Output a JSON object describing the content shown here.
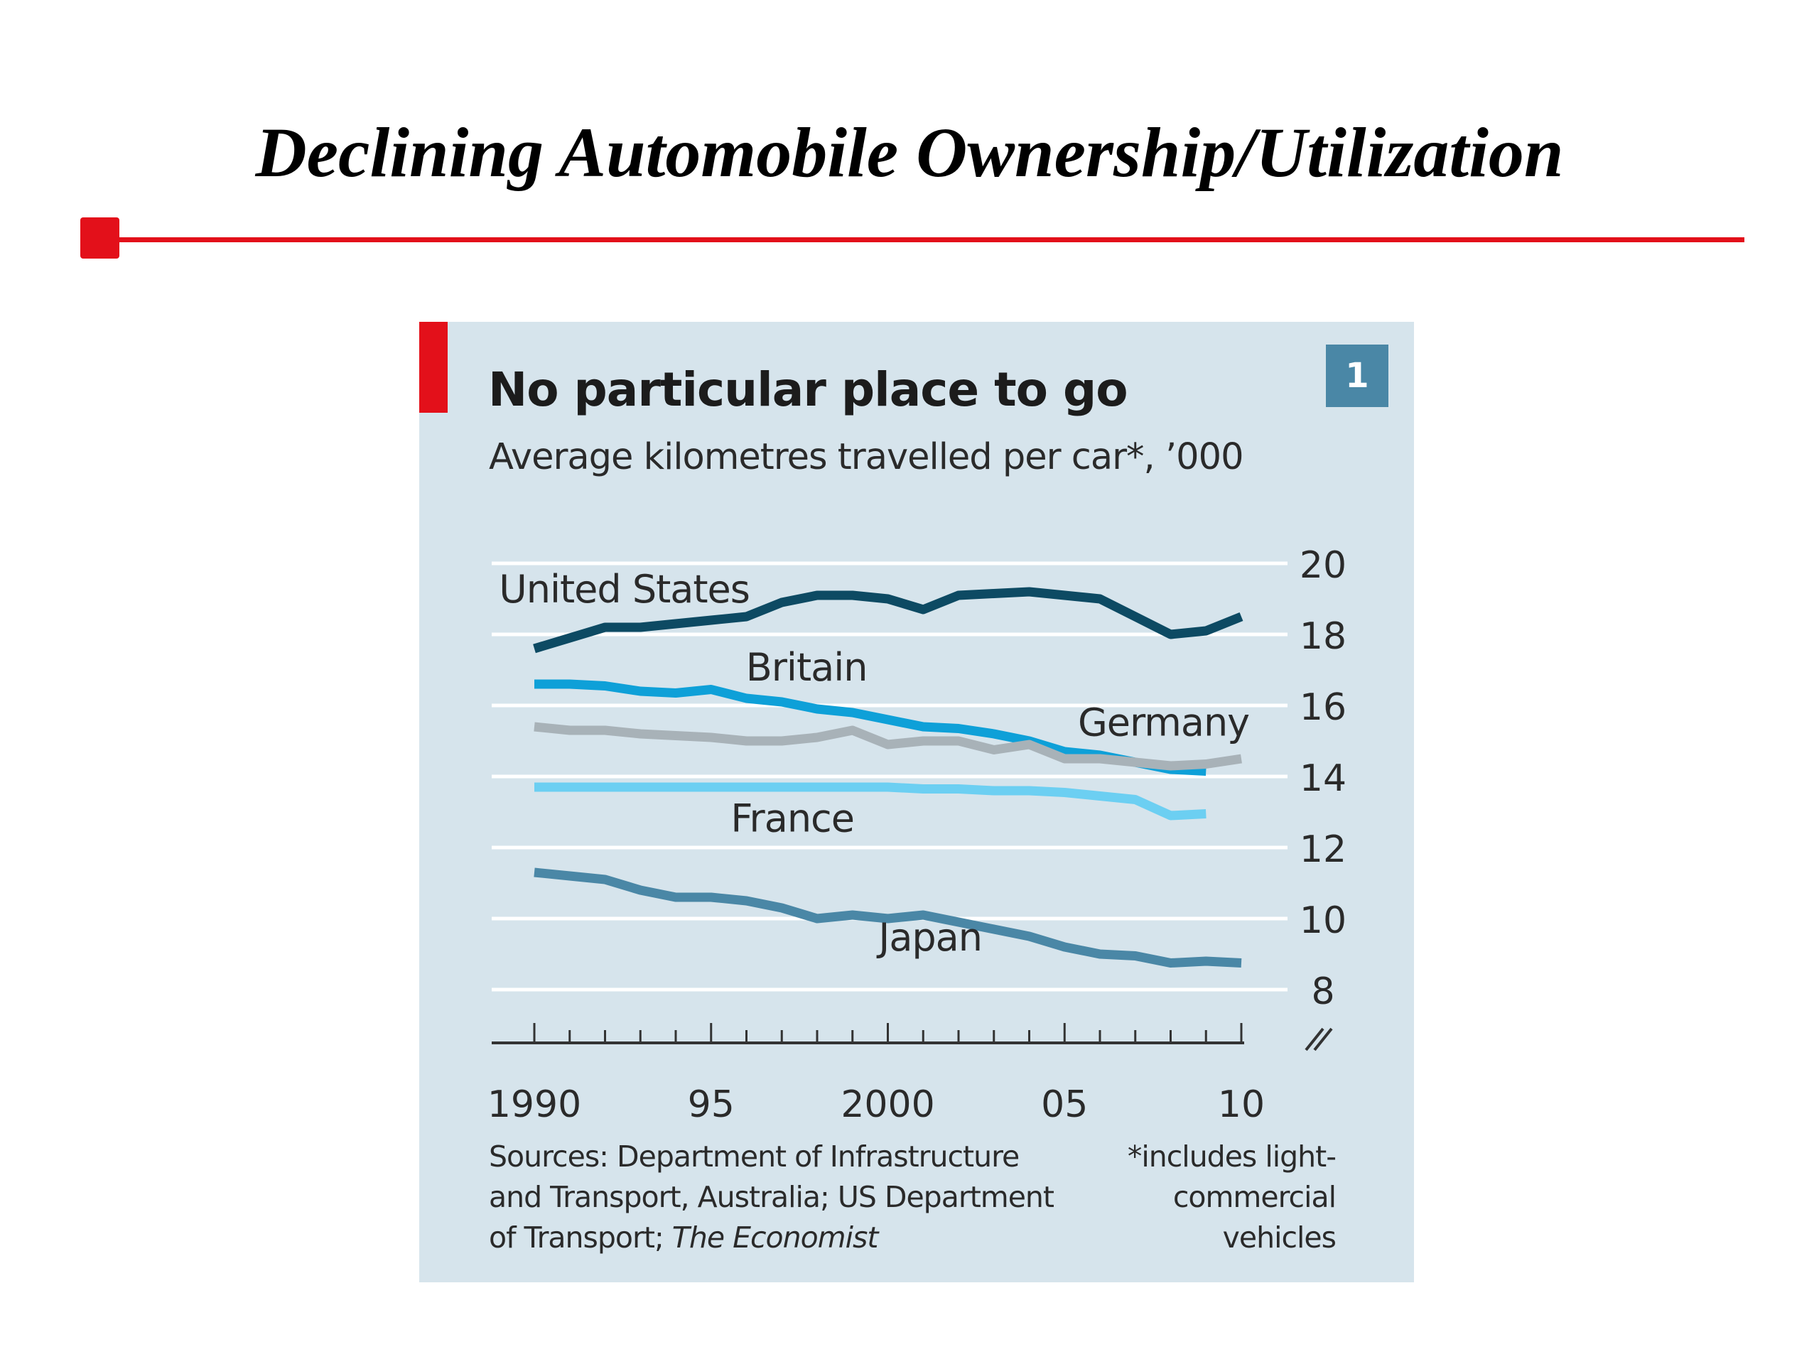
{
  "slide": {
    "title": "Declining Automobile Ownership/Utilization"
  },
  "chart_data": {
    "type": "line",
    "title": "No particular place to go",
    "subtitle": "Average kilometres travelled per car*, ’000",
    "chart_number": "1",
    "x": [
      1990,
      1991,
      1992,
      1993,
      1994,
      1995,
      1996,
      1997,
      1998,
      1999,
      2000,
      2001,
      2002,
      2003,
      2004,
      2005,
      2006,
      2007,
      2008,
      2009,
      2010
    ],
    "xlim": [
      1989,
      2010.2
    ],
    "ylim": [
      7,
      20
    ],
    "yticks": [
      8,
      10,
      12,
      14,
      16,
      18,
      20
    ],
    "xtick_labels": [
      {
        "x": 1990,
        "label": "1990"
      },
      {
        "x": 1995,
        "label": "95"
      },
      {
        "x": 2000,
        "label": "2000"
      },
      {
        "x": 2005,
        "label": "05"
      },
      {
        "x": 2010,
        "label": "10"
      }
    ],
    "grid": true,
    "axis_side": "right",
    "series": [
      {
        "name": "United States",
        "color": "#0d4a63",
        "values": [
          17.6,
          17.9,
          18.2,
          18.2,
          18.3,
          18.4,
          18.5,
          18.9,
          19.1,
          19.1,
          19.0,
          18.7,
          19.1,
          19.15,
          19.2,
          19.1,
          19.0,
          18.5,
          18.0,
          18.1,
          18.5
        ]
      },
      {
        "name": "Britain",
        "color": "#0ea0d8",
        "values": [
          16.6,
          16.6,
          16.55,
          16.4,
          16.35,
          16.45,
          16.2,
          16.1,
          15.9,
          15.8,
          15.6,
          15.4,
          15.35,
          15.2,
          15.0,
          14.7,
          14.6,
          14.4,
          14.2,
          14.15,
          null
        ]
      },
      {
        "name": "Germany",
        "color": "#a8b2b8",
        "values": [
          15.4,
          15.3,
          15.3,
          15.2,
          15.15,
          15.1,
          15.0,
          15.0,
          15.1,
          15.3,
          14.9,
          15.0,
          15.0,
          14.75,
          14.9,
          14.5,
          14.5,
          14.4,
          14.3,
          14.35,
          14.5
        ]
      },
      {
        "name": "France",
        "color": "#6ccff2",
        "values": [
          13.7,
          13.7,
          13.7,
          13.7,
          13.7,
          13.7,
          13.7,
          13.7,
          13.7,
          13.7,
          13.7,
          13.65,
          13.65,
          13.6,
          13.6,
          13.55,
          13.45,
          13.35,
          12.9,
          12.95,
          null
        ]
      },
      {
        "name": "Japan",
        "color": "#4a87a6",
        "values": [
          11.3,
          11.2,
          11.1,
          10.8,
          10.6,
          10.6,
          10.5,
          10.3,
          10.0,
          10.1,
          10.0,
          10.1,
          9.9,
          9.7,
          9.5,
          9.2,
          9.0,
          8.95,
          8.75,
          8.8,
          8.75
        ]
      }
    ],
    "sources": {
      "line1": "Sources: Department of Infrastructure",
      "line2": "and Transport, Australia; US Department",
      "line3_prefix": "of Transport; ",
      "line3_italic": "The Economist"
    },
    "footnote": {
      "line1": "*includes light-",
      "line2": "commercial",
      "line3": "vehicles"
    }
  }
}
